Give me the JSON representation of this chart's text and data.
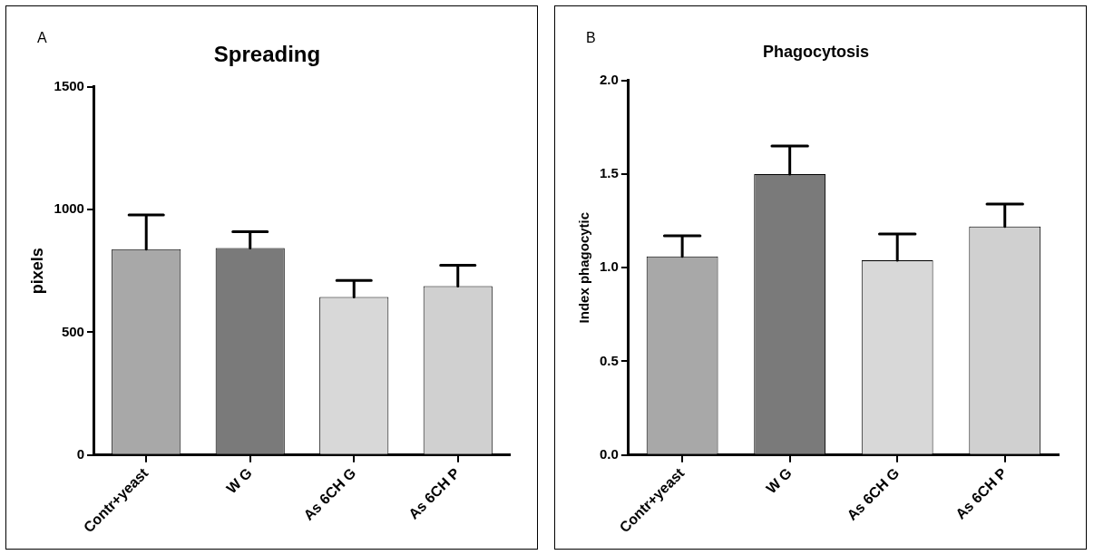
{
  "chart_data": [
    {
      "type": "bar",
      "title": "Spreading",
      "ylabel": "pixels",
      "annotations": [
        "A"
      ],
      "categories": [
        "Contr+yeast",
        "W G",
        "As 6CH G",
        "As 6CH P"
      ],
      "values": [
        839,
        843,
        644,
        688
      ],
      "errors": [
        [
          839,
          978
        ],
        [
          843,
          910
        ],
        [
          644,
          711
        ],
        [
          688,
          773
        ]
      ],
      "colors": [
        "#a8a8a8",
        "#7a7a7a",
        "#d8d8d8",
        "#d0d0d0"
      ],
      "ylim": [
        0,
        1500
      ],
      "yticks": [
        0,
        500,
        1000,
        1500
      ],
      "grid": false,
      "legend": false
    },
    {
      "type": "bar",
      "title": "Phagocytosis",
      "ylabel": "Index phagocytic",
      "annotations": [
        "B"
      ],
      "categories": [
        "Contr+yeast",
        "W G",
        "As 6CH G",
        "As 6CH P"
      ],
      "values": [
        1.06,
        1.5,
        1.04,
        1.22
      ],
      "errors": [
        [
          1.06,
          1.17
        ],
        [
          1.5,
          1.65
        ],
        [
          1.04,
          1.18
        ],
        [
          1.22,
          1.34
        ]
      ],
      "colors": [
        "#a8a8a8",
        "#7a7a7a",
        "#d8d8d8",
        "#d0d0d0"
      ],
      "ylim": [
        0,
        2.0
      ],
      "yticks": [
        {
          "value": 0,
          "label": "0.0"
        },
        {
          "value": 0.5,
          "label": "0.5"
        },
        {
          "value": 1.0,
          "label": "1.0"
        },
        {
          "value": 1.5,
          "label": "1.5"
        },
        {
          "value": 2.0,
          "label": "2.0"
        }
      ],
      "grid": false,
      "legend": false
    }
  ]
}
